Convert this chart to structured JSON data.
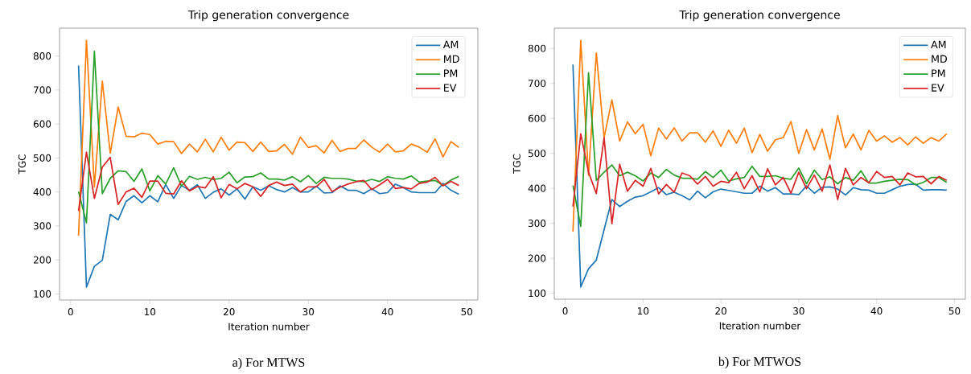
{
  "chart_data": [
    {
      "type": "line",
      "title": "Trip generation convergence",
      "xlabel": "Iteration number",
      "ylabel": "TGC",
      "annotations": [
        "a) For MTWS"
      ],
      "legend": "top right",
      "x": [
        1,
        2,
        3,
        4,
        5,
        6,
        7,
        8,
        9,
        10,
        11,
        12,
        13,
        14,
        15,
        16,
        17,
        18,
        19,
        20,
        21,
        22,
        23,
        24,
        25,
        26,
        27,
        28,
        29,
        30,
        31,
        32,
        33,
        34,
        35,
        36,
        37,
        38,
        39,
        40,
        41,
        42,
        43,
        44,
        45,
        46,
        47,
        48,
        49
      ],
      "xlim": [
        -1.4,
        51.4
      ],
      "ylim": [
        82,
        882
      ],
      "xticks": [
        0,
        10,
        20,
        30,
        40,
        50
      ],
      "yticks": [
        100,
        200,
        300,
        400,
        500,
        600,
        700,
        800
      ],
      "series": [
        {
          "name": "AM",
          "color": "#1f77b4",
          "values": [
            772,
            120,
            181,
            199,
            334,
            318,
            372,
            389,
            368,
            389,
            371,
            422,
            381,
            419,
            405,
            421,
            381,
            399,
            409,
            391,
            409,
            379,
            415,
            405,
            418,
            407,
            400,
            413,
            400,
            400,
            417,
            397,
            398,
            418,
            405,
            405,
            395,
            409,
            395,
            398,
            423,
            413,
            400,
            398,
            398,
            398,
            425,
            405,
            393
          ]
        },
        {
          "name": "MD",
          "color": "#ff7f0e",
          "values": [
            271,
            846,
            415,
            726,
            514,
            650,
            564,
            562,
            573,
            569,
            541,
            549,
            548,
            513,
            541,
            518,
            555,
            518,
            561,
            523,
            547,
            545,
            519,
            547,
            519,
            521,
            540,
            511,
            561,
            531,
            536,
            515,
            552,
            519,
            528,
            528,
            553,
            532,
            517,
            541,
            518,
            521,
            541,
            532,
            517,
            556,
            503,
            548,
            531
          ]
        },
        {
          "name": "PM",
          "color": "#2ca02c",
          "values": [
            401,
            309,
            814,
            395,
            440,
            462,
            460,
            431,
            468,
            403,
            448,
            423,
            471,
            417,
            446,
            437,
            443,
            437,
            440,
            458,
            427,
            444,
            445,
            456,
            438,
            438,
            435,
            445,
            430,
            448,
            425,
            443,
            440,
            440,
            438,
            432,
            430,
            437,
            431,
            445,
            440,
            438,
            447,
            429,
            432,
            434,
            419,
            435,
            446
          ]
        },
        {
          "name": "EV",
          "color": "#d62728",
          "values": [
            344,
            517,
            381,
            473,
            502,
            363,
            400,
            411,
            384,
            432,
            432,
            396,
            394,
            433,
            403,
            416,
            412,
            445,
            383,
            422,
            409,
            425,
            415,
            387,
            419,
            429,
            419,
            423,
            400,
            415,
            415,
            437,
            401,
            414,
            423,
            430,
            434,
            407,
            421,
            437,
            410,
            413,
            409,
            425,
            429,
            443,
            418,
            431,
            419
          ]
        }
      ]
    },
    {
      "type": "line",
      "title": "Trip generation convergence",
      "xlabel": "Iteration number",
      "ylabel": "TGC",
      "annotations": [
        "b) For MTWOS"
      ],
      "legend": "top right",
      "x": [
        1,
        2,
        3,
        4,
        5,
        6,
        7,
        8,
        9,
        10,
        11,
        12,
        13,
        14,
        15,
        16,
        17,
        18,
        19,
        20,
        21,
        22,
        23,
        24,
        25,
        26,
        27,
        28,
        29,
        30,
        31,
        32,
        33,
        34,
        35,
        36,
        37,
        38,
        39,
        40,
        41,
        42,
        43,
        44,
        45,
        46,
        47,
        48,
        49
      ],
      "xlim": [
        -1.4,
        51.4
      ],
      "ylim": [
        83,
        858
      ],
      "xticks": [
        0,
        10,
        20,
        30,
        40,
        50
      ],
      "yticks": [
        100,
        200,
        300,
        400,
        500,
        600,
        700,
        800
      ],
      "series": [
        {
          "name": "AM",
          "color": "#1f77b4",
          "values": [
            754,
            118,
            170,
            195,
            282,
            368,
            348,
            363,
            375,
            379,
            390,
            402,
            382,
            389,
            379,
            367,
            392,
            373,
            390,
            398,
            394,
            390,
            386,
            386,
            406,
            392,
            402,
            384,
            384,
            382,
            407,
            386,
            403,
            404,
            398,
            381,
            402,
            396,
            395,
            386,
            386,
            396,
            406,
            411,
            412,
            395,
            396,
            396,
            395
          ]
        },
        {
          "name": "MD",
          "color": "#ff7f0e",
          "values": [
            276,
            823,
            437,
            787,
            545,
            653,
            535,
            590,
            556,
            583,
            493,
            572,
            541,
            573,
            535,
            559,
            559,
            532,
            564,
            520,
            566,
            529,
            572,
            502,
            554,
            506,
            539,
            545,
            591,
            500,
            568,
            510,
            570,
            483,
            608,
            516,
            555,
            510,
            566,
            535,
            550,
            532,
            545,
            524,
            547,
            529,
            545,
            535,
            556
          ]
        },
        {
          "name": "PM",
          "color": "#2ca02c",
          "values": [
            408,
            291,
            730,
            423,
            446,
            467,
            436,
            446,
            436,
            421,
            444,
            431,
            454,
            438,
            429,
            429,
            426,
            448,
            431,
            452,
            421,
            427,
            431,
            463,
            434,
            434,
            436,
            429,
            426,
            458,
            413,
            452,
            425,
            433,
            413,
            431,
            423,
            450,
            415,
            415,
            420,
            423,
            426,
            425,
            410,
            417,
            431,
            431,
            417
          ]
        },
        {
          "name": "EV",
          "color": "#d62728",
          "values": [
            348,
            556,
            446,
            385,
            545,
            299,
            469,
            392,
            423,
            406,
            457,
            384,
            411,
            389,
            444,
            436,
            412,
            434,
            406,
            420,
            416,
            446,
            399,
            436,
            390,
            456,
            410,
            431,
            386,
            446,
            399,
            438,
            392,
            467,
            368,
            457,
            410,
            431,
            416,
            448,
            431,
            434,
            410,
            444,
            433,
            434,
            413,
            434,
            423
          ]
        }
      ]
    }
  ]
}
